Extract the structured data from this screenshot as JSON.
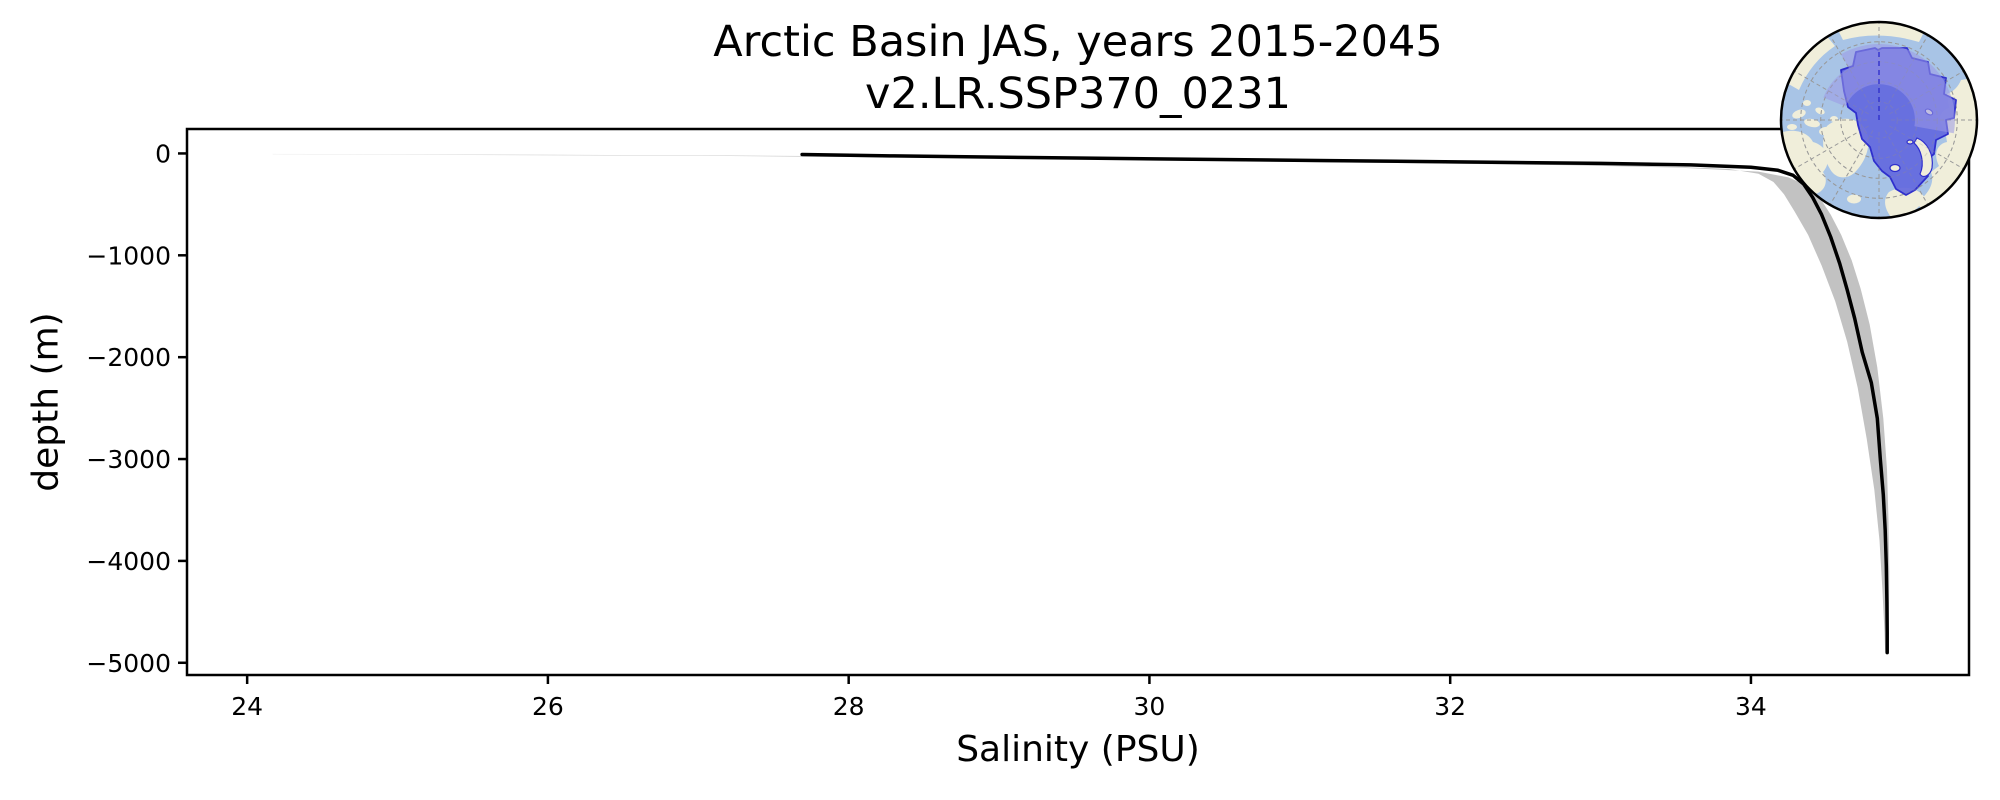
{
  "palette": {
    "line": "#000000",
    "band": "#bfbfbf",
    "spine": "#000000",
    "text": "#000000",
    "ocean": "#a8c4e6",
    "land": "#f0eeda",
    "region_fill": "#6368de",
    "region_outline": "#2f2fcd",
    "overlay": "#9a99e5",
    "graticule": "#999999"
  },
  "chart_data": {
    "type": "line",
    "title": "Arctic Basin JAS, years 2015-2045",
    "subtitle": "v2.LR.SSP370_0231",
    "xlabel": "Salinity (PSU)",
    "ylabel": "depth (m)",
    "xlim": [
      23.6,
      35.45
    ],
    "ylim": [
      -5120,
      240
    ],
    "grid": false,
    "legend": "none",
    "x_ticks": [
      {
        "value": 24,
        "label": "24"
      },
      {
        "value": 26,
        "label": "26"
      },
      {
        "value": 28,
        "label": "28"
      },
      {
        "value": 30,
        "label": "30"
      },
      {
        "value": 32,
        "label": "32"
      },
      {
        "value": 34,
        "label": "34"
      }
    ],
    "y_ticks": [
      {
        "value": 0,
        "label": "0"
      },
      {
        "value": -1000,
        "label": "−1000"
      },
      {
        "value": -2000,
        "label": "−2000"
      },
      {
        "value": -3000,
        "label": "−3000"
      },
      {
        "value": -4000,
        "label": "−4000"
      },
      {
        "value": -5000,
        "label": "−5000"
      }
    ],
    "series": [
      {
        "name": "ensemble-mean salinity profile",
        "color": "#000000",
        "points": [
          [
            27.69,
            -10
          ],
          [
            28.3,
            -24
          ],
          [
            29.2,
            -40
          ],
          [
            30.2,
            -55
          ],
          [
            31.2,
            -70
          ],
          [
            32.2,
            -85
          ],
          [
            33.0,
            -98
          ],
          [
            33.6,
            -112
          ],
          [
            34.0,
            -135
          ],
          [
            34.18,
            -165
          ],
          [
            34.28,
            -215
          ],
          [
            34.35,
            -300
          ],
          [
            34.41,
            -430
          ],
          [
            34.47,
            -600
          ],
          [
            34.53,
            -820
          ],
          [
            34.59,
            -1080
          ],
          [
            34.64,
            -1340
          ],
          [
            34.69,
            -1620
          ],
          [
            34.74,
            -1950
          ],
          [
            34.8,
            -2250
          ],
          [
            34.84,
            -2600
          ],
          [
            34.86,
            -3000
          ],
          [
            34.88,
            -3350
          ],
          [
            34.893,
            -3700
          ],
          [
            34.9,
            -4050
          ],
          [
            34.904,
            -4400
          ],
          [
            34.906,
            -4700
          ],
          [
            34.906,
            -4900
          ]
        ]
      }
    ],
    "band": {
      "name": "ensemble spread",
      "color": "#bfbfbf",
      "upper": [
        [
          24.17,
          -4
        ],
        [
          25,
          -8
        ],
        [
          26,
          -13
        ],
        [
          27,
          -19
        ],
        [
          27.7,
          -25
        ],
        [
          28.6,
          -38
        ],
        [
          29.6,
          -55
        ],
        [
          30.6,
          -72
        ],
        [
          31.6,
          -88
        ],
        [
          32.6,
          -104
        ],
        [
          33.3,
          -122
        ],
        [
          33.85,
          -152
        ],
        [
          34.05,
          -200
        ],
        [
          34.15,
          -280
        ],
        [
          34.22,
          -400
        ],
        [
          34.29,
          -570
        ],
        [
          34.38,
          -800
        ],
        [
          34.47,
          -1100
        ],
        [
          34.56,
          -1450
        ],
        [
          34.64,
          -1850
        ],
        [
          34.71,
          -2300
        ],
        [
          34.77,
          -2800
        ],
        [
          34.82,
          -3300
        ],
        [
          34.855,
          -3800
        ],
        [
          34.875,
          -4300
        ],
        [
          34.888,
          -4700
        ],
        [
          34.893,
          -4900
        ]
      ],
      "lower": [
        [
          24.17,
          -10
        ],
        [
          25,
          -13
        ],
        [
          26,
          -17
        ],
        [
          27,
          -23
        ],
        [
          27.8,
          -32
        ],
        [
          28.8,
          -46
        ],
        [
          29.8,
          -62
        ],
        [
          30.8,
          -80
        ],
        [
          31.8,
          -97
        ],
        [
          32.8,
          -115
        ],
        [
          33.5,
          -138
        ],
        [
          34.05,
          -178
        ],
        [
          34.25,
          -235
        ],
        [
          34.38,
          -320
        ],
        [
          34.46,
          -440
        ],
        [
          34.53,
          -600
        ],
        [
          34.6,
          -800
        ],
        [
          34.67,
          -1050
        ],
        [
          34.73,
          -1330
        ],
        [
          34.79,
          -1680
        ],
        [
          34.84,
          -2100
        ],
        [
          34.88,
          -2600
        ],
        [
          34.905,
          -3100
        ],
        [
          34.915,
          -3600
        ],
        [
          34.92,
          -4100
        ],
        [
          34.918,
          -4500
        ],
        [
          34.915,
          -4900
        ]
      ]
    },
    "inset_map": {
      "projection": "north-polar",
      "highlighted_region": "Arctic Basin"
    }
  }
}
